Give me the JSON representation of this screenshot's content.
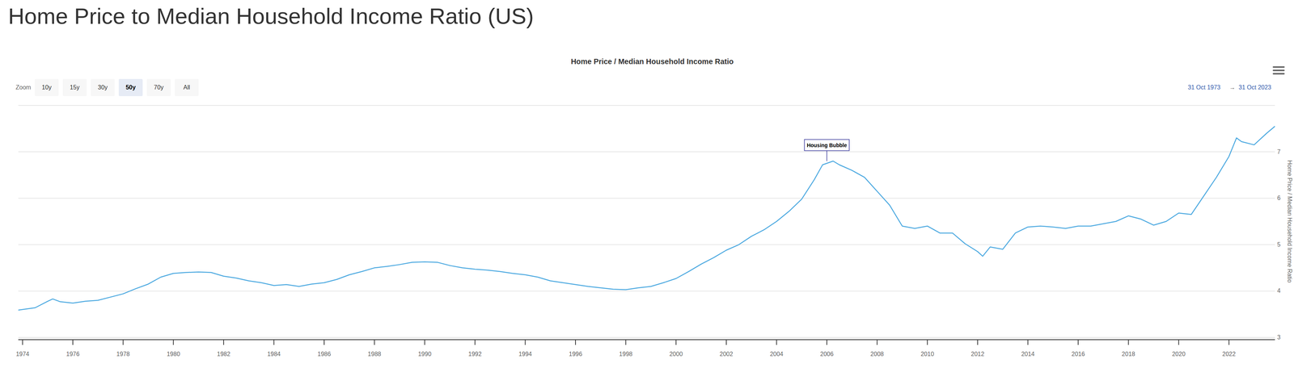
{
  "chart_data": {
    "type": "line",
    "title": "Home Price to Median Household Income Ratio (US)",
    "subtitle": "Home Price / Median Household Income Ratio",
    "y_label": "Home Price / Median Household Income Ratio",
    "zoom_label": "Zoom",
    "zoom_options": [
      "10y",
      "15y",
      "30y",
      "50y",
      "70y",
      "All"
    ],
    "zoom_selected": "50y",
    "range_start": "31 Oct 1973",
    "range_separator": "→",
    "range_end": "31 Oct 2023",
    "annotations": [
      {
        "text": "Housing Bubble",
        "x": 2006,
        "y": 6.8
      }
    ],
    "color": "#4aa8e0",
    "grid": true,
    "xlim": [
      1973.83,
      2023.83
    ],
    "xticks": [
      1974,
      1976,
      1978,
      1980,
      1982,
      1984,
      1986,
      1988,
      1990,
      1992,
      1994,
      1996,
      1998,
      2000,
      2002,
      2004,
      2006,
      2008,
      2010,
      2012,
      2014,
      2016,
      2018,
      2020,
      2022
    ],
    "ylim": [
      3,
      8
    ],
    "yticks": [
      3,
      4,
      5,
      6,
      7
    ],
    "x": [
      1973.83,
      1974.5,
      1975.0,
      1975.2,
      1975.5,
      1976.0,
      1976.5,
      1977.0,
      1977.5,
      1978.0,
      1978.5,
      1979.0,
      1979.5,
      1980.0,
      1980.5,
      1981.0,
      1981.5,
      1982.0,
      1982.5,
      1983.0,
      1983.5,
      1984.0,
      1984.5,
      1985.0,
      1985.5,
      1986.0,
      1986.5,
      1987.0,
      1987.5,
      1988.0,
      1988.5,
      1989.0,
      1989.5,
      1990.0,
      1990.5,
      1991.0,
      1991.5,
      1992.0,
      1992.5,
      1993.0,
      1993.5,
      1994.0,
      1994.5,
      1995.0,
      1995.5,
      1996.0,
      1996.5,
      1997.0,
      1997.5,
      1998.0,
      1998.5,
      1999.0,
      1999.5,
      2000.0,
      2000.5,
      2001.0,
      2001.5,
      2002.0,
      2002.5,
      2003.0,
      2003.5,
      2004.0,
      2004.5,
      2005.0,
      2005.5,
      2005.83,
      2006.25,
      2006.5,
      2007.0,
      2007.5,
      2008.0,
      2008.5,
      2009.0,
      2009.5,
      2010.0,
      2010.5,
      2011.0,
      2011.5,
      2012.0,
      2012.2,
      2012.5,
      2013.0,
      2013.5,
      2014.0,
      2014.5,
      2015.0,
      2015.5,
      2016.0,
      2016.5,
      2017.0,
      2017.5,
      2018.0,
      2018.5,
      2019.0,
      2019.5,
      2020.0,
      2020.5,
      2021.0,
      2021.5,
      2022.0,
      2022.3,
      2022.5,
      2023.0,
      2023.5,
      2023.83
    ],
    "values": [
      3.59,
      3.64,
      3.78,
      3.83,
      3.77,
      3.74,
      3.78,
      3.8,
      3.87,
      3.94,
      4.05,
      4.15,
      4.3,
      4.38,
      4.4,
      4.41,
      4.4,
      4.32,
      4.28,
      4.22,
      4.18,
      4.12,
      4.14,
      4.1,
      4.15,
      4.18,
      4.25,
      4.35,
      4.42,
      4.5,
      4.53,
      4.57,
      4.62,
      4.63,
      4.62,
      4.55,
      4.5,
      4.47,
      4.45,
      4.42,
      4.38,
      4.35,
      4.3,
      4.22,
      4.18,
      4.14,
      4.1,
      4.07,
      4.04,
      4.03,
      4.07,
      4.1,
      4.18,
      4.27,
      4.42,
      4.58,
      4.72,
      4.88,
      5.0,
      5.18,
      5.32,
      5.5,
      5.72,
      5.98,
      6.4,
      6.72,
      6.8,
      6.72,
      6.6,
      6.45,
      6.15,
      5.85,
      5.4,
      5.35,
      5.4,
      5.25,
      5.25,
      5.02,
      4.85,
      4.75,
      4.95,
      4.9,
      5.25,
      5.38,
      5.4,
      5.38,
      5.35,
      5.4,
      5.4,
      5.45,
      5.5,
      5.62,
      5.55,
      5.42,
      5.5,
      5.68,
      5.65,
      6.05,
      6.45,
      6.9,
      7.3,
      7.22,
      7.15,
      7.4,
      7.55
    ]
  }
}
